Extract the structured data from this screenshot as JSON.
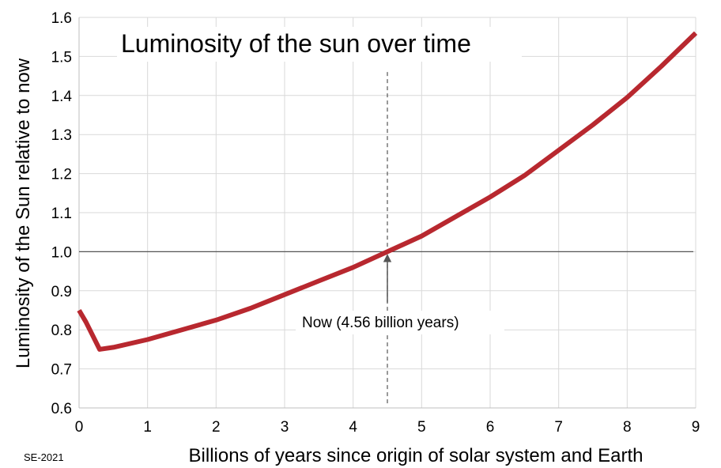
{
  "chart_data": {
    "type": "line",
    "title": "Luminosity of the sun over time",
    "xlabel": "Billions of years since origin of solar system and Earth",
    "ylabel": "Luminosity of the Sun relative to now",
    "xlim": [
      0,
      9
    ],
    "ylim": [
      0.6,
      1.6
    ],
    "x_ticks": [
      "0",
      "1",
      "2",
      "3",
      "4",
      "5",
      "6",
      "7",
      "8",
      "9"
    ],
    "y_ticks": [
      "0.6",
      "0.7",
      "0.8",
      "0.9",
      "1.0",
      "1.1",
      "1.2",
      "1.3",
      "1.4",
      "1.5",
      "1.6"
    ],
    "grid": true,
    "series": [
      {
        "x": [
          0,
          0.1,
          0.3,
          0.5,
          1.0,
          1.5,
          2.0,
          2.5,
          3.0,
          3.5,
          4.0,
          4.5,
          5.0,
          5.5,
          6.0,
          6.5,
          7.0,
          7.5,
          8.0,
          8.5,
          9.0
        ],
        "values": [
          0.85,
          0.82,
          0.75,
          0.755,
          0.775,
          0.8,
          0.825,
          0.855,
          0.89,
          0.925,
          0.96,
          1.0,
          1.04,
          1.09,
          1.14,
          1.195,
          1.26,
          1.325,
          1.395,
          1.475,
          1.56
        ],
        "color": "#b8282f"
      }
    ],
    "reference_line": {
      "y": 1.0,
      "color": "#555555"
    },
    "marker_line": {
      "x": 4.5,
      "y_top": 1.46,
      "y_bottom": 0.61
    },
    "annotation": {
      "text": "Now (4.56 billion years)",
      "x": 4.5,
      "y": 0.82
    },
    "credit": "SE-2021"
  }
}
